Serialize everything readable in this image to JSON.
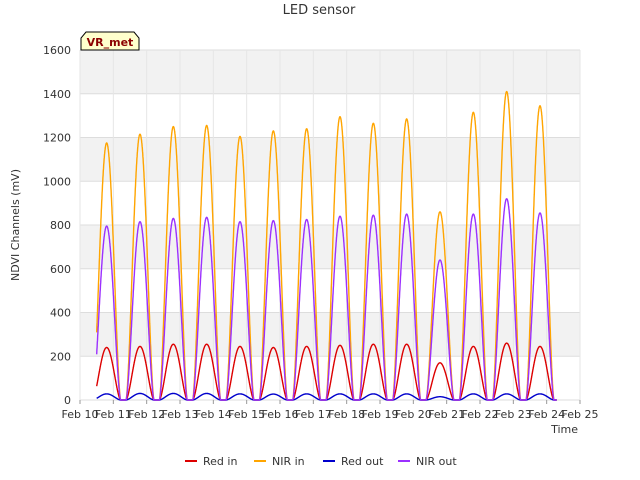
{
  "chart_data": {
    "type": "line",
    "title": "LED sensor",
    "xlabel": "Time",
    "ylabel": "NDVI Channels (mV)",
    "badge": "VR_met",
    "x_ticks": [
      "Feb 10",
      "Feb 11",
      "Feb 12",
      "Feb 13",
      "Feb 14",
      "Feb 15",
      "Feb 16",
      "Feb 17",
      "Feb 18",
      "Feb 19",
      "Feb 20",
      "Feb 21",
      "Feb 22",
      "Feb 23",
      "Feb 24",
      "Feb 25"
    ],
    "x_range_days": [
      0,
      15
    ],
    "ylim": [
      0,
      1600
    ],
    "y_ticks": [
      0,
      200,
      400,
      600,
      800,
      1000,
      1200,
      1400,
      1600
    ],
    "day_peak_centers": [
      0.8,
      1.8,
      2.8,
      3.8,
      4.8,
      5.8,
      6.8,
      7.8,
      8.8,
      9.8,
      10.8,
      11.8,
      12.8,
      13.8
    ],
    "series": [
      {
        "name": "Red in",
        "color": "#dd0000",
        "daily_peaks": [
          240,
          245,
          255,
          255,
          245,
          240,
          245,
          250,
          255,
          255,
          170,
          245,
          260,
          245
        ]
      },
      {
        "name": "NIR in",
        "color": "#ffa500",
        "daily_peaks": [
          1175,
          1215,
          1250,
          1255,
          1205,
          1230,
          1240,
          1295,
          1265,
          1285,
          860,
          1315,
          1410,
          1345
        ]
      },
      {
        "name": "Red out",
        "color": "#0000cc",
        "daily_peaks": [
          28,
          30,
          30,
          30,
          28,
          27,
          28,
          28,
          28,
          28,
          15,
          28,
          28,
          28
        ]
      },
      {
        "name": "NIR out",
        "color": "#9b30ff",
        "daily_peaks": [
          795,
          815,
          830,
          835,
          815,
          820,
          825,
          840,
          845,
          850,
          640,
          850,
          920,
          855
        ]
      }
    ]
  }
}
